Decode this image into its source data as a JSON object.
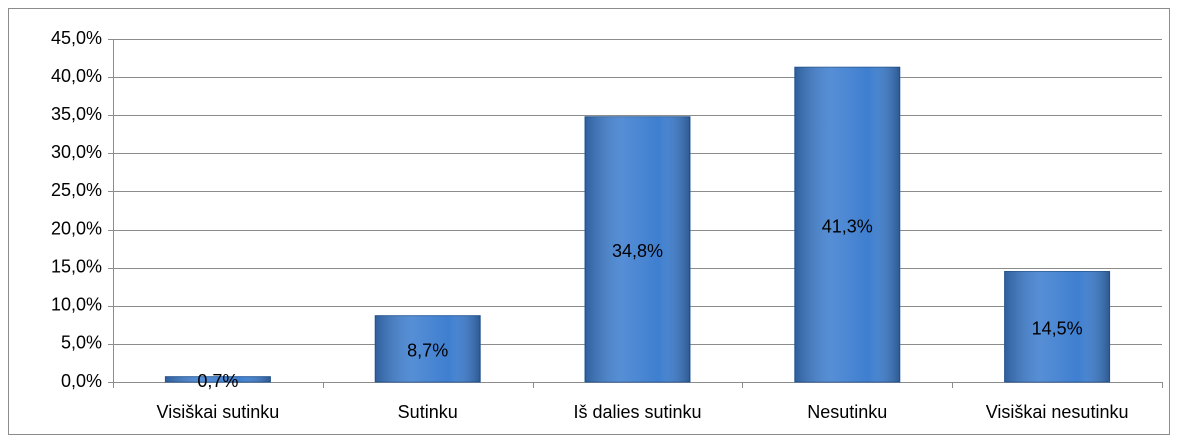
{
  "chart_data": {
    "type": "bar",
    "categories": [
      "Visiškai sutinku",
      "Sutinku",
      "Iš dalies sutinku",
      "Nesutinku",
      "Visiškai nesutinku"
    ],
    "values": [
      0.7,
      8.7,
      34.8,
      41.3,
      14.5
    ],
    "value_labels": [
      "0,7%",
      "8,7%",
      "34,8%",
      "41,3%",
      "14,5%"
    ],
    "color": "#3f7fd0",
    "ylim": [
      0,
      45
    ],
    "yticks": [
      {
        "value": 0,
        "label": "0,0%"
      },
      {
        "value": 5,
        "label": "5,0%"
      },
      {
        "value": 10,
        "label": "10,0%"
      },
      {
        "value": 15,
        "label": "15,0%"
      },
      {
        "value": 20,
        "label": "20,0%"
      },
      {
        "value": 25,
        "label": "25,0%"
      },
      {
        "value": 30,
        "label": "30,0%"
      },
      {
        "value": 35,
        "label": "35,0%"
      },
      {
        "value": 40,
        "label": "40,0%"
      },
      {
        "value": 45,
        "label": "45,0%"
      }
    ],
    "grid": true
  }
}
